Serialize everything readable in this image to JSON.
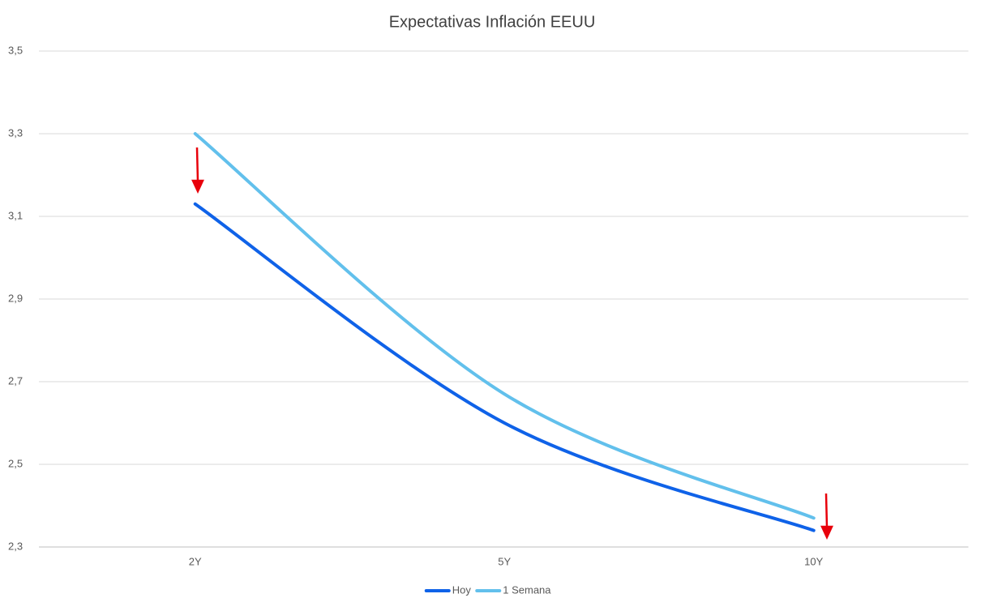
{
  "chart_data": {
    "type": "line",
    "title": "Expectativas Inflación EEUU",
    "categories": [
      "2Y",
      "5Y",
      "10Y"
    ],
    "series": [
      {
        "name": "Hoy",
        "color": "#0f62e8",
        "values": [
          3.13,
          2.6,
          2.34
        ]
      },
      {
        "name": "1 Semana",
        "color": "#62c0ec",
        "values": [
          3.3,
          2.67,
          2.37
        ]
      }
    ],
    "ylim": [
      2.3,
      3.5
    ],
    "yticks": [
      {
        "value": 2.3,
        "label": "2,3"
      },
      {
        "value": 2.5,
        "label": "2,5"
      },
      {
        "value": 2.7,
        "label": "2,7"
      },
      {
        "value": 2.9,
        "label": "2,9"
      },
      {
        "value": 3.1,
        "label": "3,1"
      },
      {
        "value": 3.3,
        "label": "3,3"
      },
      {
        "value": 3.5,
        "label": "3,5"
      }
    ],
    "grid": true,
    "smooth": true,
    "legend": "bottom"
  }
}
